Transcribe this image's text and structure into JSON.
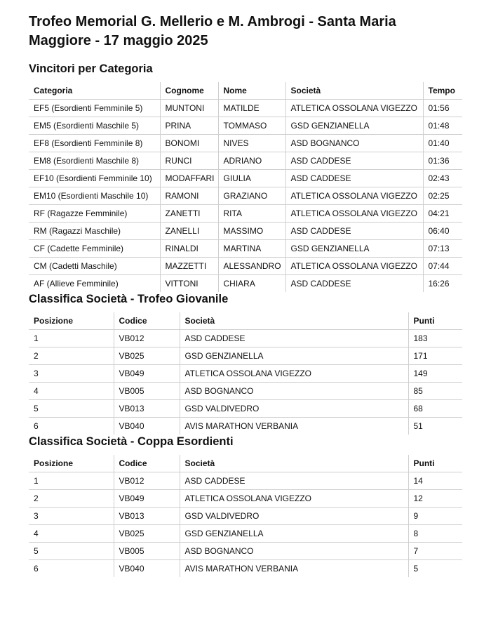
{
  "header": {
    "title": "Trofeo Memorial G. Mellerio e M. Ambrogi - Santa Maria Maggiore - 17 maggio 2025"
  },
  "sections": [
    {
      "title": "Vincitori per Categoria",
      "columns": [
        "Categoria",
        "Cognome",
        "Nome",
        "Società",
        "Tempo"
      ],
      "rows": [
        [
          "EF5 (Esordienti Femminile 5)",
          "MUNTONI",
          "MATILDE",
          "ATLETICA OSSOLANA VIGEZZO",
          "01:56"
        ],
        [
          "EM5 (Esordienti Maschile 5)",
          "PRINA",
          "TOMMASO",
          "GSD GENZIANELLA",
          "01:48"
        ],
        [
          "EF8 (Esordienti Femminile 8)",
          "BONOMI",
          "NIVES",
          "ASD BOGNANCO",
          "01:40"
        ],
        [
          "EM8 (Esordienti Maschile 8)",
          "RUNCI",
          "ADRIANO",
          "ASD CADDESE",
          "01:36"
        ],
        [
          "EF10 (Esordienti Femminile 10)",
          "MODAFFARI",
          "GIULIA",
          "ASD CADDESE",
          "02:43"
        ],
        [
          "EM10 (Esordienti Maschile 10)",
          "RAMONI",
          "GRAZIANO",
          "ATLETICA OSSOLANA VIGEZZO",
          "02:25"
        ],
        [
          "RF (Ragazze Femminile)",
          "ZANETTI",
          "RITA",
          "ATLETICA OSSOLANA VIGEZZO",
          "04:21"
        ],
        [
          "RM (Ragazzi Maschile)",
          "ZANELLI",
          "MASSIMO",
          "ASD CADDESE",
          "06:40"
        ],
        [
          "CF (Cadette Femminile)",
          "RINALDI",
          "MARTINA",
          "GSD GENZIANELLA",
          "07:13"
        ],
        [
          "CM (Cadetti Maschile)",
          "MAZZETTI",
          "ALESSANDRO",
          "ATLETICA OSSOLANA VIGEZZO",
          "07:44"
        ],
        [
          "AF (Allieve Femminile)",
          "VITTONI",
          "CHIARA",
          "ASD CADDESE",
          "16:26"
        ]
      ]
    },
    {
      "title": "Classifica Società - Trofeo Giovanile",
      "columns": [
        "Posizione",
        "Codice",
        "Società",
        "Punti"
      ],
      "rows": [
        [
          1,
          "VB012",
          "ASD CADDESE",
          183
        ],
        [
          2,
          "VB025",
          "GSD GENZIANELLA",
          171
        ],
        [
          3,
          "VB049",
          "ATLETICA OSSOLANA VIGEZZO",
          149
        ],
        [
          4,
          "VB005",
          "ASD BOGNANCO",
          85
        ],
        [
          5,
          "VB013",
          "GSD VALDIVEDRO",
          68
        ],
        [
          6,
          "VB040",
          "AVIS MARATHON VERBANIA",
          51
        ]
      ]
    },
    {
      "title": "Classifica Società - Coppa Esordienti",
      "columns": [
        "Posizione",
        "Codice",
        "Società",
        "Punti"
      ],
      "rows": [
        [
          1,
          "VB012",
          "ASD CADDESE",
          14
        ],
        [
          2,
          "VB049",
          "ATLETICA OSSOLANA VIGEZZO",
          12
        ],
        [
          3,
          "VB013",
          "GSD VALDIVEDRO",
          9
        ],
        [
          4,
          "VB025",
          "GSD GENZIANELLA",
          8
        ],
        [
          5,
          "VB005",
          "ASD BOGNANCO",
          7
        ],
        [
          6,
          "VB040",
          "AVIS MARATHON VERBANIA",
          5
        ]
      ]
    }
  ]
}
